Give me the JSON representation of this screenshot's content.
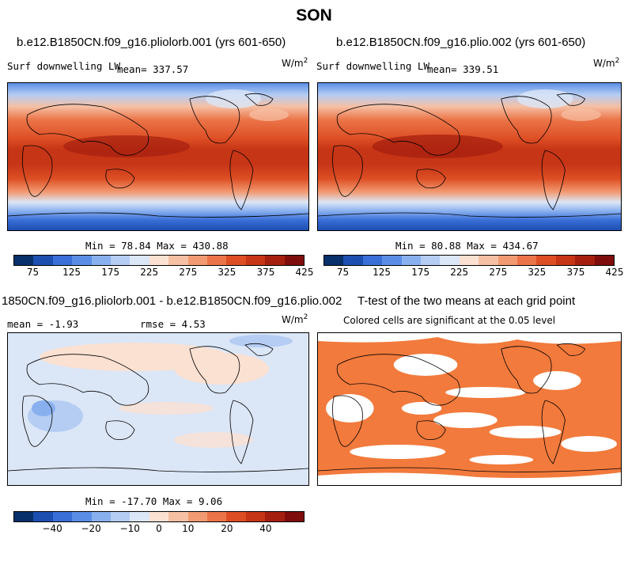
{
  "figure": {
    "season": "SON"
  },
  "panels": [
    {
      "title": "b.e12.B1850CN.f09_g16.pliolorb.001 (yrs 601-650)",
      "left_label": "Surf downwelling LW",
      "mean_label": "mean= 337.57",
      "units": "W/m",
      "units_sup": "2",
      "stats": "Min =  78.84 Max = 430.88"
    },
    {
      "title": "b.e12.B1850CN.f09_g16.plio.002 (yrs 601-650)",
      "left_label": "Surf downwelling LW",
      "mean_label": "mean= 339.51",
      "units": "W/m",
      "units_sup": "2",
      "stats": "Min =  80.88 Max = 434.67"
    },
    {
      "title": "1850CN.f09_g16.pliolorb.001 - b.e12.B1850CN.f09_g16.plio.002",
      "mean_label": "mean =  -1.93",
      "rmse_label": "rmse =   4.53",
      "units": "W/m",
      "units_sup": "2",
      "stats": "Min = -17.70 Max =   9.06"
    },
    {
      "title": "T-test of the two means at each grid point",
      "subtitle": "Colored cells are significant at the 0.05 level"
    }
  ],
  "colorbars": {
    "abs": {
      "colors": [
        "#08306b",
        "#1c4fb0",
        "#3a6fd8",
        "#5a8ee6",
        "#89b0ee",
        "#b5cdf3",
        "#dbe6f7",
        "#fbe1d2",
        "#f6c0a4",
        "#f29a72",
        "#eb7448",
        "#dd4e24",
        "#c63516",
        "#a51f0f",
        "#7f0d0b"
      ],
      "labels": [
        "75",
        "125",
        "175",
        "225",
        "275",
        "325",
        "375",
        "425"
      ]
    },
    "diff": {
      "colors": [
        "#08306b",
        "#1c4fb0",
        "#3a6fd8",
        "#5a8ee6",
        "#89b0ee",
        "#b5cdf3",
        "#dbe6f7",
        "#fbe1d2",
        "#f6c0a4",
        "#f29a72",
        "#eb7448",
        "#dd4e24",
        "#c63516",
        "#a51f0f",
        "#7f0d0b"
      ],
      "labels": [
        "−40",
        "−20",
        "−10",
        "0",
        "10",
        "20",
        "40"
      ]
    }
  },
  "chart_data": [
    {
      "type": "heatmap",
      "title": "b.e12.B1850CN.f09_g16.pliolorb.001 (yrs 601-650)",
      "variable": "Surf downwelling LW",
      "units": "W/m2",
      "mean": 337.57,
      "min": 78.84,
      "max": 430.88,
      "colorbar_ticks": [
        75,
        125,
        175,
        225,
        275,
        325,
        375,
        425
      ]
    },
    {
      "type": "heatmap",
      "title": "b.e12.B1850CN.f09_g16.plio.002 (yrs 601-650)",
      "variable": "Surf downwelling LW",
      "units": "W/m2",
      "mean": 339.51,
      "min": 80.88,
      "max": 434.67,
      "colorbar_ticks": [
        75,
        125,
        175,
        225,
        275,
        325,
        375,
        425
      ]
    },
    {
      "type": "heatmap",
      "title": "1850CN.f09_g16.pliolorb.001 - b.e12.B1850CN.f09_g16.plio.002",
      "units": "W/m2",
      "mean": -1.93,
      "rmse": 4.53,
      "min": -17.7,
      "max": 9.06,
      "colorbar_ticks": [
        -40,
        -20,
        -10,
        0,
        10,
        20,
        40
      ]
    },
    {
      "type": "heatmap",
      "title": "T-test of the two means at each grid point",
      "subtitle": "Colored cells are significant at the 0.05 level"
    }
  ]
}
